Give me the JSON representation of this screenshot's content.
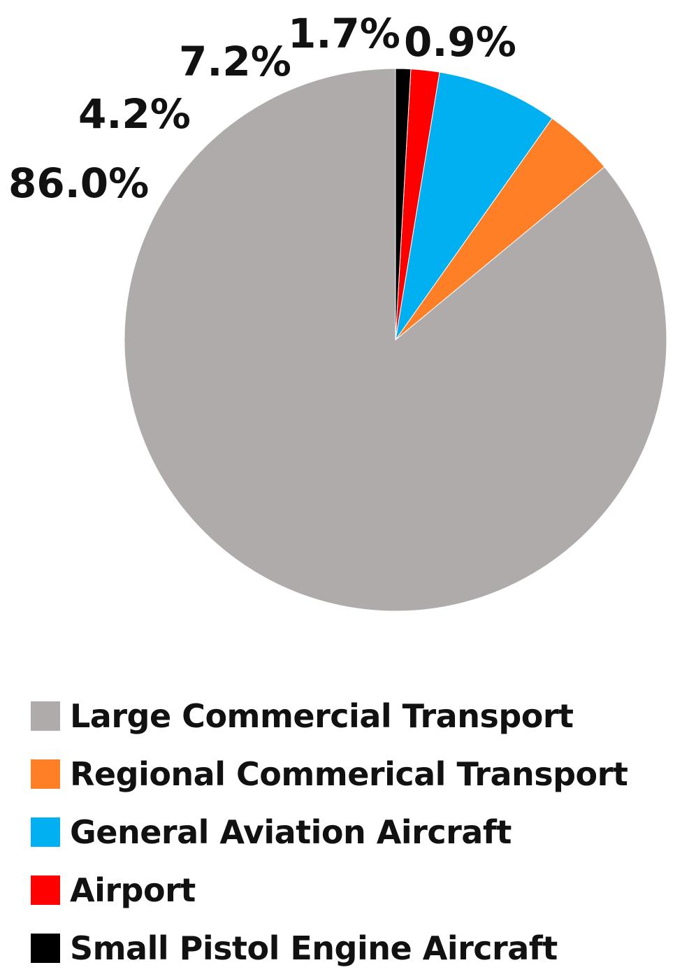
{
  "chart_data": {
    "type": "pie",
    "title": "",
    "start_angle_deg": 0,
    "direction": "counterclockwise",
    "slices": [
      {
        "label": "Large Commercial Transport",
        "value": 86.0,
        "display": "86.0%",
        "color": "#AFABAB"
      },
      {
        "label": "Regional Commerical Transport",
        "value": 4.2,
        "display": "4.2%",
        "color": "#FF7F27"
      },
      {
        "label": "General Aviation Aircraft",
        "value": 7.2,
        "display": "7.2%",
        "color": "#00B0F0"
      },
      {
        "label": "Airport",
        "value": 1.7,
        "display": "1.7%",
        "color": "#FF0000"
      },
      {
        "label": "Small Pistol Engine Aircraft",
        "value": 0.9,
        "display": "0.9%",
        "color": "#000000"
      }
    ],
    "legend_position": "bottom"
  }
}
